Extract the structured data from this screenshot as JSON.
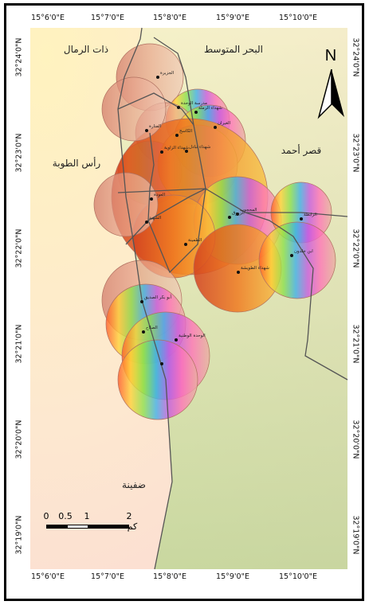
{
  "map": {
    "lon_ticks_top": [
      "15°6'0\"E",
      "15°7'0\"E",
      "15°8'0\"E",
      "15°9'0\"E",
      "15°10'0\"E"
    ],
    "lon_ticks_bottom": [
      "15°6'0\"E",
      "15°7'0\"E",
      "15°8'0\"E",
      "15°9'0\"E",
      "15°10'0\"E"
    ],
    "lat_ticks_left": [
      "32°24'0\"N",
      "32°23'0\"N",
      "32°22'0\"N",
      "32°21'0\"N",
      "32°20'0\"N",
      "32°19'0\"N"
    ],
    "lat_ticks_right": [
      "32°24'0\"N",
      "32°23'0\"N",
      "32°22'0\"N",
      "32°21'0\"N",
      "32°20'0\"N",
      "32°19'0\"N"
    ],
    "region_labels": {
      "mediterranean": "البحر المتوسط",
      "dhat_alrimal": "ذات الرمال",
      "ras_altuba": "رأس الطوبة",
      "qasr_ahmed": "قصر أحمد",
      "dafniya": "ضفينة"
    },
    "north_arrow": {
      "letter": "N",
      "icon": "north-arrow-icon"
    },
    "scale_bar": {
      "labels": [
        "0",
        "0.5",
        "1",
        "2"
      ],
      "unit": "كم"
    },
    "places": [
      "الجزيرة",
      "مدرسة الوحدة",
      "شهداء الرملة",
      "المنارة",
      "الغيران",
      "الكاسح",
      "شهداء تبادل",
      "شهداء الزاوية",
      "العودة",
      "المحجوب",
      "الزروق",
      "الرابطة",
      "ابن خلدون",
      "الشهيد",
      "الطمينة",
      "شهداء الطويشة",
      "أبو بكر الصديق",
      "الصلاح",
      "الوحدة الوطنية"
    ]
  }
}
